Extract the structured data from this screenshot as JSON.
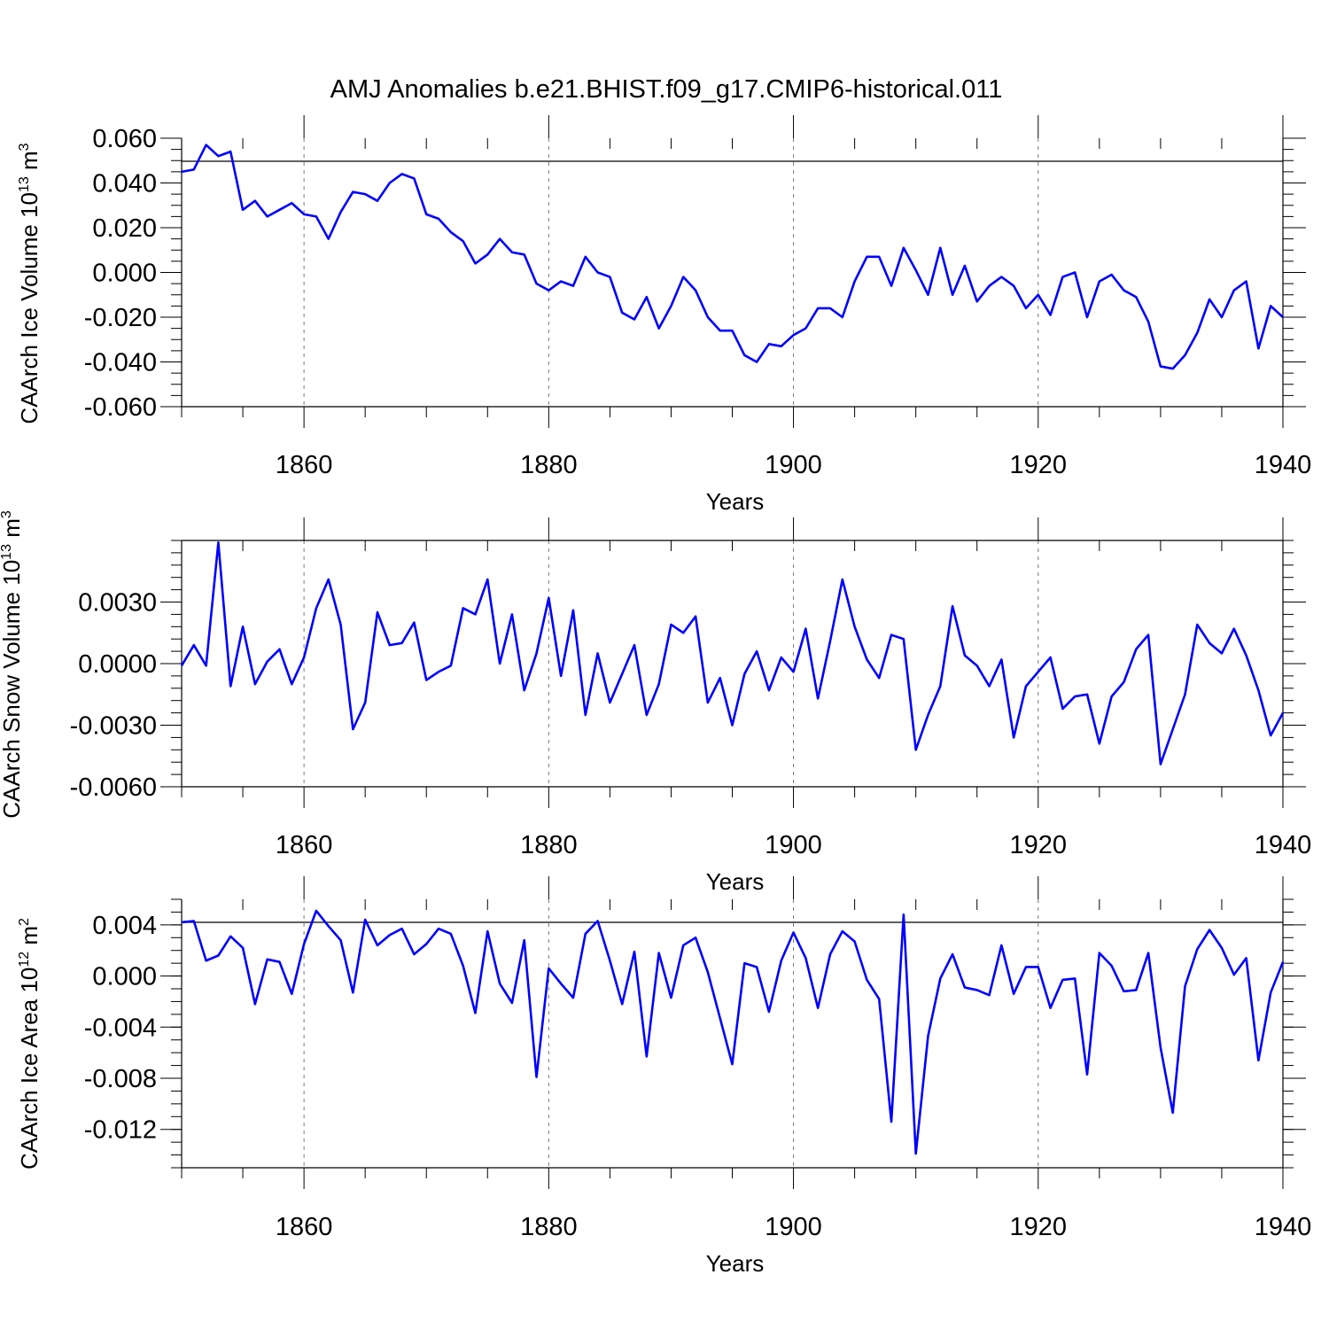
{
  "title": "AMJ Anomalies b.e21.BHIST.f09_g17.CMIP6-historical.011",
  "colors": {
    "line": "#0000ff",
    "frame": "#000000",
    "grid": "#777777"
  },
  "chart_data": [
    {
      "type": "line",
      "xlabel": "Years",
      "ylabel": {
        "text": "CAArch Ice Volume 10",
        "sup": "13",
        "unit": " m",
        "unit_sup": "3"
      },
      "xlim": [
        1850,
        1940
      ],
      "ylim": [
        -0.06,
        0.06
      ],
      "xticks": [
        1860,
        1880,
        1900,
        1920,
        1940
      ],
      "x_tick_labels": [
        "1860",
        "1880",
        "1900",
        "1920",
        "1940"
      ],
      "yticks": [
        0.06,
        0.04,
        0.02,
        0.0,
        -0.02,
        -0.04,
        -0.06
      ],
      "y_tick_labels": [
        "0.060",
        "0.040",
        "0.020",
        "0.000",
        "-0.020",
        "-0.040",
        "-0.060"
      ],
      "y_minor_step": 0.005,
      "grid": "vertical dashed at major x ticks",
      "x_start": 1850,
      "values": [
        0.045,
        0.046,
        0.057,
        0.052,
        0.054,
        0.028,
        0.032,
        0.025,
        0.028,
        0.031,
        0.026,
        0.025,
        0.015,
        0.027,
        0.036,
        0.035,
        0.032,
        0.04,
        0.044,
        0.042,
        0.026,
        0.024,
        0.018,
        0.014,
        0.004,
        0.008,
        0.015,
        0.009,
        0.008,
        -0.005,
        -0.008,
        -0.004,
        -0.006,
        0.007,
        0.0,
        -0.002,
        -0.018,
        -0.021,
        -0.011,
        -0.025,
        -0.015,
        -0.002,
        -0.008,
        -0.02,
        -0.026,
        -0.026,
        -0.037,
        -0.04,
        -0.032,
        -0.033,
        -0.028,
        -0.025,
        -0.016,
        -0.016,
        -0.02,
        -0.004,
        0.007,
        0.007,
        -0.006,
        0.011,
        0.001,
        -0.01,
        0.011,
        -0.01,
        0.003,
        -0.013,
        -0.006,
        -0.002,
        -0.006,
        -0.016,
        -0.01,
        -0.019,
        -0.002,
        0.0,
        -0.02,
        -0.004,
        -0.001,
        -0.008,
        -0.011,
        -0.022,
        -0.042,
        -0.043,
        -0.037,
        -0.027,
        -0.012,
        -0.02,
        -0.008,
        -0.004,
        -0.034,
        -0.015,
        -0.02
      ]
    },
    {
      "type": "line",
      "xlabel": "Years",
      "ylabel": {
        "text": "CAArch Snow Volume 10",
        "sup": "13",
        "unit": " m",
        "unit_sup": "3"
      },
      "xlim": [
        1850,
        1940
      ],
      "ylim": [
        -0.006,
        0.006
      ],
      "xticks": [
        1860,
        1880,
        1900,
        1920,
        1940
      ],
      "x_tick_labels": [
        "1860",
        "1880",
        "1900",
        "1920",
        "1940"
      ],
      "yticks": [
        0.003,
        0.0,
        -0.003,
        -0.006
      ],
      "y_tick_labels": [
        "0.0030",
        "0.0000",
        "-0.0030",
        "-0.0060"
      ],
      "y_minor_step": 0.0006,
      "grid": "vertical dashed at major x ticks",
      "x_start": 1850,
      "values": [
        -0.0001,
        0.0009,
        -0.0001,
        0.0059,
        -0.0011,
        0.0018,
        -0.001,
        0.0001,
        0.0007,
        -0.001,
        0.0003,
        0.0027,
        0.0041,
        0.0019,
        -0.0032,
        -0.0019,
        0.0025,
        0.0009,
        0.001,
        0.002,
        -0.0008,
        -0.0004,
        -0.0001,
        0.0027,
        0.0024,
        0.0041,
        0.0,
        0.0024,
        -0.0013,
        0.0005,
        0.0032,
        -0.0006,
        0.0026,
        -0.0025,
        0.0005,
        -0.0019,
        -0.0005,
        0.0009,
        -0.0025,
        -0.001,
        0.0019,
        0.0015,
        0.0023,
        -0.0019,
        -0.0007,
        -0.003,
        -0.0005,
        0.0006,
        -0.0013,
        0.0003,
        -0.0004,
        0.0017,
        -0.0017,
        0.0011,
        0.0041,
        0.0018,
        0.0002,
        -0.0007,
        0.0014,
        0.0012,
        -0.0042,
        -0.0025,
        -0.0011,
        0.0028,
        0.0004,
        -0.0001,
        -0.0011,
        0.0002,
        -0.0036,
        -0.0011,
        -0.0004,
        0.0003,
        -0.0022,
        -0.0016,
        -0.0015,
        -0.0039,
        -0.0016,
        -0.0009,
        0.0007,
        0.0014,
        -0.0049,
        -0.0032,
        -0.0015,
        0.0019,
        0.001,
        0.0005,
        0.0017,
        0.0004,
        -0.0013,
        -0.0035,
        -0.0024
      ]
    },
    {
      "type": "line",
      "xlabel": "Years",
      "ylabel": {
        "text": "CAArch Ice Area 10",
        "sup": "12",
        "unit": " m",
        "unit_sup": "2"
      },
      "xlim": [
        1850,
        1940
      ],
      "ylim": [
        -0.015,
        0.006
      ],
      "xticks": [
        1860,
        1880,
        1900,
        1920,
        1940
      ],
      "x_tick_labels": [
        "1860",
        "1880",
        "1900",
        "1920",
        "1940"
      ],
      "yticks": [
        0.004,
        0.0,
        -0.004,
        -0.008,
        -0.012
      ],
      "y_tick_labels": [
        "0.004",
        "0.000",
        "-0.004",
        "-0.008",
        "-0.012"
      ],
      "y_minor_step": 0.001,
      "grid": "vertical dashed at major x ticks",
      "x_start": 1850,
      "values": [
        0.0042,
        0.0043,
        0.0012,
        0.0016,
        0.0031,
        0.0022,
        -0.0022,
        0.0013,
        0.0011,
        -0.0014,
        0.0025,
        0.0051,
        0.0039,
        0.0028,
        -0.0013,
        0.0044,
        0.0024,
        0.0032,
        0.0037,
        0.0017,
        0.0025,
        0.0037,
        0.0033,
        0.0008,
        -0.0029,
        0.0035,
        -0.0006,
        -0.0021,
        0.0028,
        -0.0079,
        0.0006,
        -0.0006,
        -0.0017,
        0.0033,
        0.0043,
        0.0012,
        -0.0022,
        0.0019,
        -0.0063,
        0.0018,
        -0.0017,
        0.0024,
        0.003,
        0.0003,
        -0.0033,
        -0.0069,
        0.001,
        0.0007,
        -0.0028,
        0.0012,
        0.0034,
        0.0014,
        -0.0025,
        0.0017,
        0.0035,
        0.0027,
        -0.0003,
        -0.0018,
        -0.0114,
        0.0048,
        -0.0139,
        -0.0047,
        -0.0002,
        0.0017,
        -0.0009,
        -0.0011,
        -0.0015,
        0.0024,
        -0.0014,
        0.0007,
        0.0007,
        -0.0025,
        -0.0003,
        -0.0002,
        -0.0077,
        0.0018,
        0.0008,
        -0.0012,
        -0.0011,
        0.0018,
        -0.0056,
        -0.0107,
        -0.0008,
        0.0021,
        0.0036,
        0.0022,
        0.0001,
        0.0014,
        -0.0066,
        -0.0013,
        0.0011
      ]
    }
  ]
}
